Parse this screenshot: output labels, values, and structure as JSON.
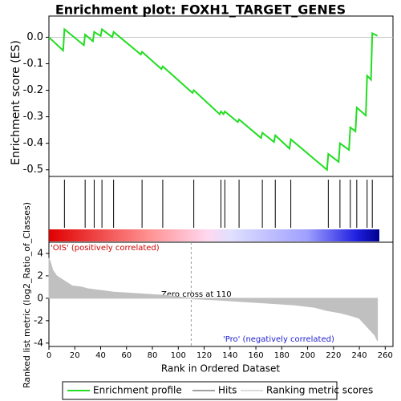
{
  "chart_data": {
    "type": "line",
    "title": "Enrichment plot: FOXH1_TARGET_GENES",
    "ylabel": "Enrichment score (ES)",
    "xlabel": "Rank in Ordered Dataset",
    "color": "#22dd22",
    "x": [
      0,
      11,
      12,
      27,
      28,
      34,
      35,
      40,
      41,
      49,
      50,
      71,
      72,
      87,
      88,
      111,
      112,
      132,
      133,
      135,
      136,
      146,
      147,
      164,
      165,
      174,
      175,
      186,
      187,
      215,
      216,
      224,
      225,
      232,
      233,
      237,
      238,
      245,
      246,
      249,
      250,
      254
    ],
    "values": [
      0,
      -0.05,
      0.03,
      -0.03,
      0.01,
      -0.015,
      0.02,
      0.005,
      0.03,
      0.0,
      0.02,
      -0.065,
      -0.055,
      -0.12,
      -0.11,
      -0.21,
      -0.2,
      -0.29,
      -0.28,
      -0.29,
      -0.28,
      -0.32,
      -0.31,
      -0.38,
      -0.36,
      -0.395,
      -0.37,
      -0.42,
      -0.385,
      -0.5,
      -0.44,
      -0.47,
      -0.4,
      -0.425,
      -0.34,
      -0.355,
      -0.265,
      -0.295,
      -0.145,
      -0.16,
      0.015,
      0.005
    ],
    "ylim": [
      -0.525,
      0.08
    ],
    "yticks": [
      {
        "value": 0,
        "label": "0.0"
      },
      -0.1,
      -0.2,
      -0.3,
      -0.4,
      -0.5
    ],
    "xlim": [
      0,
      266
    ],
    "xticks": [
      0,
      20,
      40,
      60,
      80,
      100,
      120,
      140,
      160,
      180,
      200,
      220,
      240,
      260
    ],
    "hits": [
      12,
      28,
      35,
      41,
      50,
      72,
      88,
      112,
      133,
      136,
      147,
      165,
      175,
      187,
      216,
      225,
      233,
      238,
      246,
      250
    ],
    "metric": {
      "ylabel": "Ranked list metric (log2_Ratio_of_Classes)",
      "color": "#c0c0c0",
      "x": [
        0,
        1,
        3,
        6,
        10,
        14,
        18,
        25,
        30,
        40,
        50,
        70,
        90,
        110,
        111,
        130,
        150,
        170,
        190,
        205,
        215,
        225,
        235,
        240,
        244,
        248,
        252,
        254
      ],
      "values": [
        3.5,
        3.3,
        2.5,
        2.0,
        1.7,
        1.4,
        1.1,
        1.0,
        0.85,
        0.7,
        0.55,
        0.4,
        0.25,
        0,
        -0.05,
        -0.15,
        -0.3,
        -0.45,
        -0.6,
        -0.8,
        -1.1,
        -1.3,
        -1.6,
        -1.8,
        -2.3,
        -2.8,
        -3.3,
        -3.8
      ],
      "ylim": [
        -4.3,
        5
      ],
      "yticks": [
        4,
        2,
        0,
        -2,
        -4
      ]
    },
    "zero_cross": 110,
    "zero_cross_label": "Zero cross at 110",
    "pos_label": "'OIS' (positively correlated)",
    "neg_label": "'Pro' (negatively correlated)",
    "legend": [
      {
        "name": "Enrichment profile",
        "color": "#22dd22"
      },
      {
        "name": "Hits",
        "color": "#808080"
      },
      {
        "name": "Ranking metric scores",
        "color": "#d0d0d0"
      }
    ]
  }
}
